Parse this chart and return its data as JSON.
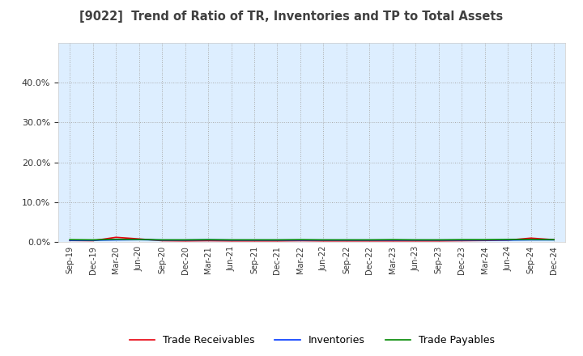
{
  "title": "[9022]  Trend of Ratio of TR, Inventories and TP to Total Assets",
  "x_labels": [
    "Sep-19",
    "Dec-19",
    "Mar-20",
    "Jun-20",
    "Sep-20",
    "Dec-20",
    "Mar-21",
    "Jun-21",
    "Sep-21",
    "Dec-21",
    "Mar-22",
    "Jun-22",
    "Sep-22",
    "Dec-22",
    "Mar-23",
    "Jun-23",
    "Sep-23",
    "Dec-23",
    "Mar-24",
    "Jun-24",
    "Sep-24",
    "Dec-24"
  ],
  "trade_receivables": [
    0.004,
    0.0035,
    0.012,
    0.008,
    0.0035,
    0.003,
    0.0035,
    0.003,
    0.003,
    0.003,
    0.0035,
    0.003,
    0.003,
    0.003,
    0.003,
    0.003,
    0.003,
    0.0035,
    0.004,
    0.005,
    0.01,
    0.006
  ],
  "inventories": [
    0.0045,
    0.0045,
    0.0055,
    0.006,
    0.005,
    0.005,
    0.0055,
    0.005,
    0.005,
    0.005,
    0.005,
    0.005,
    0.005,
    0.005,
    0.005,
    0.005,
    0.005,
    0.005,
    0.005,
    0.005,
    0.0055,
    0.0055
  ],
  "trade_payables": [
    0.006,
    0.0055,
    0.007,
    0.0065,
    0.0055,
    0.0055,
    0.006,
    0.0055,
    0.0055,
    0.0055,
    0.006,
    0.0055,
    0.0055,
    0.0055,
    0.006,
    0.0055,
    0.0055,
    0.006,
    0.006,
    0.0065,
    0.0065,
    0.006
  ],
  "tr_color": "#e8000d",
  "inv_color": "#0037ff",
  "tp_color": "#008800",
  "ylim": [
    0.0,
    0.5
  ],
  "yticks": [
    0.0,
    0.1,
    0.2,
    0.3,
    0.4
  ],
  "bg_color": "#ffffff",
  "plot_bg_color": "#ddeeff",
  "grid_color": "#aaaaaa",
  "title_color": "#404040",
  "legend_labels": [
    "Trade Receivables",
    "Inventories",
    "Trade Payables"
  ]
}
